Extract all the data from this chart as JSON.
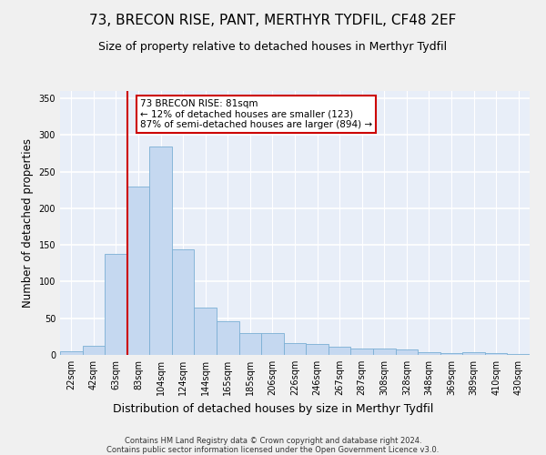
{
  "title": "73, BRECON RISE, PANT, MERTHYR TYDFIL, CF48 2EF",
  "subtitle": "Size of property relative to detached houses in Merthyr Tydfil",
  "xlabel": "Distribution of detached houses by size in Merthyr Tydfil",
  "ylabel": "Number of detached properties",
  "categories": [
    "22sqm",
    "42sqm",
    "63sqm",
    "83sqm",
    "104sqm",
    "124sqm",
    "144sqm",
    "165sqm",
    "185sqm",
    "206sqm",
    "226sqm",
    "246sqm",
    "267sqm",
    "287sqm",
    "308sqm",
    "328sqm",
    "348sqm",
    "369sqm",
    "389sqm",
    "410sqm",
    "430sqm"
  ],
  "values": [
    5,
    13,
    138,
    230,
    284,
    144,
    65,
    46,
    30,
    30,
    16,
    15,
    11,
    9,
    9,
    7,
    4,
    3,
    4,
    2,
    1
  ],
  "bar_color": "#c5d8f0",
  "bar_edge_color": "#7bafd4",
  "bg_color": "#e8eef8",
  "grid_color": "#ffffff",
  "vline_color": "#cc0000",
  "annotation_text": "73 BRECON RISE: 81sqm\n← 12% of detached houses are smaller (123)\n87% of semi-detached houses are larger (894) →",
  "annotation_box_color": "#ffffff",
  "annotation_box_edge": "#cc0000",
  "footer": "Contains HM Land Registry data © Crown copyright and database right 2024.\nContains public sector information licensed under the Open Government Licence v3.0.",
  "ylim": [
    0,
    360
  ],
  "yticks": [
    0,
    50,
    100,
    150,
    200,
    250,
    300,
    350
  ],
  "title_fontsize": 11,
  "subtitle_fontsize": 9,
  "xlabel_fontsize": 9,
  "ylabel_fontsize": 8.5,
  "tick_fontsize": 7,
  "footer_fontsize": 6,
  "annot_fontsize": 7.5
}
